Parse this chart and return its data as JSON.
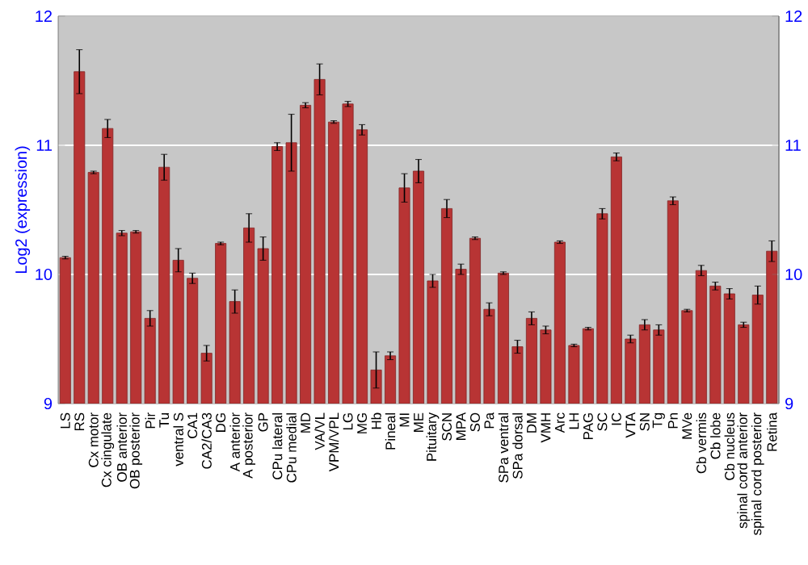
{
  "chart_data": {
    "type": "bar",
    "ylabel": "Log2 (expression)",
    "categories": [
      "LS",
      "RS",
      "Cx motor",
      "Cx cingulate",
      "OB anterior",
      "OB posterior",
      "Pir",
      "Tu",
      "ventral S",
      "CA1",
      "CA2/CA3",
      "DG",
      "A anterior",
      "A posterior",
      "GP",
      "CPu lateral",
      "CPu medial",
      "MD",
      "VA/VL",
      "VPM/VPL",
      "LG",
      "MG",
      "Hb",
      "Pineal",
      "MI",
      "ME",
      "Pituitary",
      "SCN",
      "MPA",
      "SO",
      "Pa",
      "SPa ventral",
      "SPa dorsal",
      "DM",
      "VMH",
      "Arc",
      "LH",
      "PAG",
      "SC",
      "IC",
      "VTA",
      "SN",
      "Tg",
      "Pn",
      "MVe",
      "Cb vermis",
      "Cb lobe",
      "Cb nucleus",
      "spinal cord anterior",
      "spinal cord posterior",
      "Retina"
    ],
    "values": [
      10.13,
      11.57,
      10.79,
      11.13,
      10.32,
      10.33,
      9.66,
      10.83,
      10.11,
      9.97,
      9.39,
      10.24,
      9.79,
      10.36,
      10.2,
      10.99,
      11.02,
      11.31,
      11.51,
      11.18,
      11.32,
      11.12,
      9.26,
      9.37,
      10.67,
      10.8,
      9.95,
      10.51,
      10.04,
      10.28,
      9.73,
      10.01,
      9.44,
      9.66,
      9.57,
      10.25,
      9.45,
      9.58,
      10.47,
      10.91,
      9.5,
      9.61,
      9.57,
      10.57,
      9.72,
      10.03,
      9.91,
      9.85,
      9.61,
      9.84,
      10.18
    ],
    "errors": [
      0.01,
      0.17,
      0.01,
      0.07,
      0.02,
      0.01,
      0.06,
      0.1,
      0.09,
      0.04,
      0.06,
      0.01,
      0.09,
      0.11,
      0.09,
      0.03,
      0.22,
      0.02,
      0.12,
      0.01,
      0.02,
      0.04,
      0.14,
      0.03,
      0.11,
      0.09,
      0.05,
      0.07,
      0.04,
      0.01,
      0.05,
      0.01,
      0.05,
      0.05,
      0.03,
      0.01,
      0.01,
      0.01,
      0.04,
      0.03,
      0.03,
      0.04,
      0.04,
      0.03,
      0.01,
      0.04,
      0.03,
      0.04,
      0.02,
      0.07,
      0.08
    ],
    "color": "#b83434",
    "ylim": [
      9,
      12
    ],
    "yticks": [
      9,
      10,
      11,
      12
    ],
    "y2lim": [
      9,
      12
    ],
    "y2ticks": [
      9,
      10,
      11,
      12
    ],
    "grid": "y"
  }
}
